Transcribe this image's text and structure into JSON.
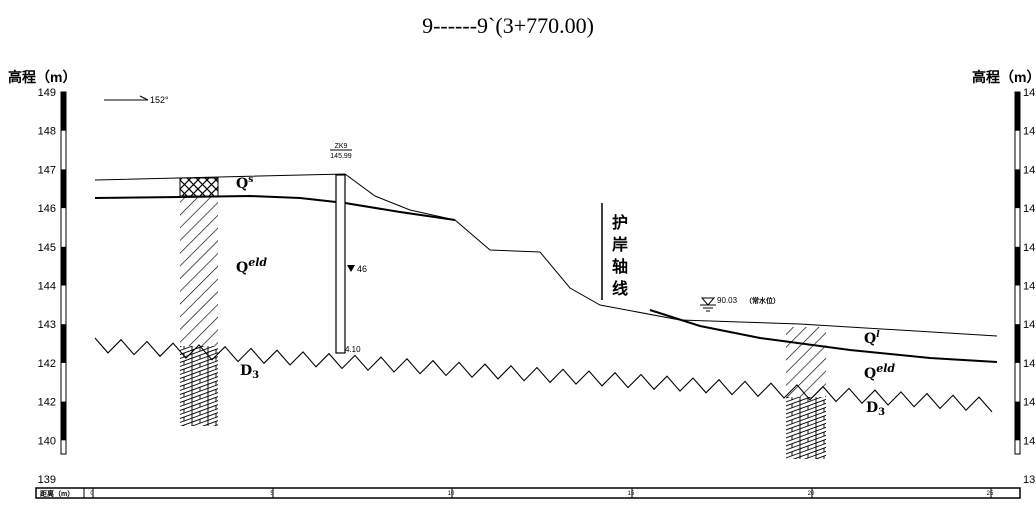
{
  "title": "9------9`(3+770.00)",
  "bearing": "152°",
  "left_axis": {
    "label": "高程（m）",
    "ticks": [
      "149",
      "148",
      "147",
      "146",
      "145",
      "144",
      "143",
      "142",
      "142",
      "140",
      "139"
    ]
  },
  "right_axis": {
    "label": "高程（m）",
    "ticks": [
      "14",
      "14",
      "14",
      "14",
      "14",
      "14",
      "14",
      "14",
      "14",
      "14",
      "13"
    ]
  },
  "borehole": {
    "id": "ZK9",
    "elevation": "145.99",
    "water_depth": "46",
    "bottom_depth": "4.10"
  },
  "axis_line_label": [
    "护",
    "岸",
    "轴",
    "线"
  ],
  "water_level": {
    "value": "90.03",
    "note": "（常水位）"
  },
  "layers": {
    "left_top": {
      "base": "Q",
      "sup": "s"
    },
    "left_mid": {
      "base": "Q",
      "sup": "eld"
    },
    "left_bottom": {
      "base": "D",
      "sub": "3"
    },
    "right_top": {
      "base": "Q",
      "sup": "l"
    },
    "right_mid": {
      "base": "Q",
      "sup": "eld"
    },
    "right_bottom": {
      "base": "D",
      "sub": "3"
    }
  },
  "distance_bar": {
    "label": "距离（m）",
    "ticks": [
      "0",
      "5",
      "10",
      "15",
      "20",
      "25"
    ]
  }
}
